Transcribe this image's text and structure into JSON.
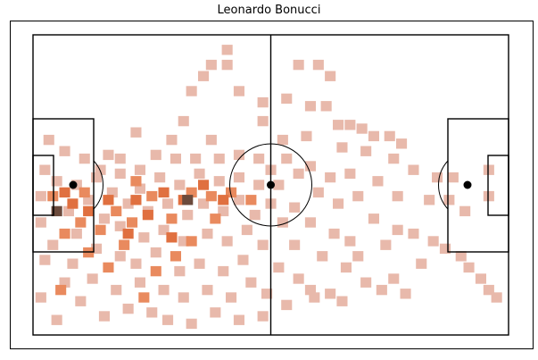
{
  "chart_data": {
    "type": "heatmap",
    "title": "Leonardo Bonucci",
    "subject": "pitch heatmap",
    "xlim": [
      0,
      120
    ],
    "ylim": [
      0,
      80
    ],
    "grid": false,
    "colors": {
      "low": "#e8b9ab",
      "mid": "#e98a5e",
      "high": "#e07040",
      "peak": "#6b4a3c",
      "pitch_lines": "#000000"
    },
    "bin_size": 2.72,
    "cells": [
      [
        49,
        76,
        1
      ],
      [
        45,
        72,
        1
      ],
      [
        49,
        72,
        1
      ],
      [
        67,
        72,
        1
      ],
      [
        72,
        72,
        1
      ],
      [
        43,
        69,
        1
      ],
      [
        75,
        69,
        1
      ],
      [
        40,
        65,
        1
      ],
      [
        52,
        65,
        1
      ],
      [
        58,
        62,
        1
      ],
      [
        64,
        63,
        1
      ],
      [
        70,
        61,
        1
      ],
      [
        74,
        61,
        1
      ],
      [
        38,
        57,
        1
      ],
      [
        58,
        57,
        1
      ],
      [
        77,
        56,
        1
      ],
      [
        80,
        56,
        1
      ],
      [
        83,
        55,
        1
      ],
      [
        86,
        53,
        1
      ],
      [
        90,
        53,
        1
      ],
      [
        93,
        51,
        1
      ],
      [
        26,
        54,
        1
      ],
      [
        35,
        52,
        1
      ],
      [
        45,
        52,
        1
      ],
      [
        63,
        52,
        1
      ],
      [
        69,
        53,
        1
      ],
      [
        78,
        50,
        1
      ],
      [
        84,
        49,
        1
      ],
      [
        91,
        47,
        1
      ],
      [
        96,
        44,
        1
      ],
      [
        102,
        42,
        1
      ],
      [
        106,
        42,
        1
      ],
      [
        115,
        44,
        1
      ],
      [
        115,
        37,
        1
      ],
      [
        87,
        41,
        1
      ],
      [
        92,
        37,
        1
      ],
      [
        100,
        36,
        1
      ],
      [
        105,
        36,
        1
      ],
      [
        109,
        33,
        1
      ],
      [
        86,
        31,
        1
      ],
      [
        92,
        28,
        1
      ],
      [
        96,
        27,
        1
      ],
      [
        101,
        25,
        1
      ],
      [
        104,
        23,
        1
      ],
      [
        108,
        21,
        1
      ],
      [
        110,
        18,
        1
      ],
      [
        113,
        15,
        1
      ],
      [
        115,
        12,
        1
      ],
      [
        117,
        10,
        1
      ],
      [
        84,
        14,
        1
      ],
      [
        88,
        12,
        1
      ],
      [
        91,
        15,
        1
      ],
      [
        94,
        11,
        1
      ],
      [
        98,
        19,
        1
      ],
      [
        89,
        24,
        1
      ],
      [
        82,
        21,
        1
      ],
      [
        75,
        11,
        1
      ],
      [
        78,
        9,
        1
      ],
      [
        71,
        10,
        1
      ],
      [
        64,
        8,
        1
      ],
      [
        58,
        5,
        1
      ],
      [
        52,
        4,
        1
      ],
      [
        46,
        6,
        1
      ],
      [
        40,
        3,
        1
      ],
      [
        34,
        4,
        1
      ],
      [
        30,
        6,
        1
      ],
      [
        24,
        7,
        1
      ],
      [
        18,
        5,
        1
      ],
      [
        12,
        9,
        1
      ],
      [
        8,
        14,
        1
      ],
      [
        3,
        20,
        1
      ],
      [
        2,
        10,
        1
      ],
      [
        6,
        4,
        1
      ],
      [
        4,
        52,
        1
      ],
      [
        8,
        49,
        1
      ],
      [
        13,
        47,
        1
      ],
      [
        17,
        44,
        1
      ],
      [
        22,
        47,
        1
      ],
      [
        27,
        44,
        1
      ],
      [
        31,
        48,
        1
      ],
      [
        36,
        47,
        1
      ],
      [
        41,
        47,
        1
      ],
      [
        47,
        47,
        1
      ],
      [
        52,
        48,
        1
      ],
      [
        57,
        47,
        1
      ],
      [
        60,
        44,
        1
      ],
      [
        64,
        47,
        1
      ],
      [
        70,
        45,
        1
      ],
      [
        75,
        42,
        1
      ],
      [
        80,
        43,
        1
      ],
      [
        72,
        38,
        1
      ],
      [
        77,
        35,
        1
      ],
      [
        82,
        37,
        1
      ],
      [
        70,
        30,
        1
      ],
      [
        76,
        27,
        1
      ],
      [
        80,
        25,
        1
      ],
      [
        73,
        21,
        1
      ],
      [
        79,
        18,
        1
      ],
      [
        66,
        24,
        1
      ],
      [
        62,
        18,
        1
      ],
      [
        67,
        15,
        1
      ],
      [
        70,
        12,
        1
      ],
      [
        55,
        14,
        1
      ],
      [
        59,
        11,
        1
      ],
      [
        50,
        10,
        1
      ],
      [
        44,
        12,
        1
      ],
      [
        38,
        10,
        1
      ],
      [
        33,
        12,
        1
      ],
      [
        27,
        14,
        1
      ],
      [
        21,
        12,
        1
      ],
      [
        15,
        15,
        1
      ],
      [
        10,
        19,
        1
      ],
      [
        5,
        24,
        1
      ],
      [
        2,
        30,
        1
      ],
      [
        2,
        37,
        1
      ],
      [
        3,
        44,
        1
      ],
      [
        6,
        41,
        1
      ],
      [
        9,
        33,
        1
      ],
      [
        11,
        27,
        1
      ],
      [
        16,
        23,
        1
      ],
      [
        22,
        21,
        1
      ],
      [
        26,
        19,
        1
      ],
      [
        31,
        22,
        1
      ],
      [
        37,
        17,
        1
      ],
      [
        42,
        19,
        1
      ],
      [
        48,
        17,
        1
      ],
      [
        53,
        20,
        1
      ],
      [
        58,
        24,
        1
      ],
      [
        54,
        28,
        1
      ],
      [
        49,
        25,
        1
      ],
      [
        44,
        27,
        1
      ],
      [
        38,
        25,
        1
      ],
      [
        33,
        28,
        1
      ],
      [
        28,
        26,
        1
      ],
      [
        22,
        29,
        1
      ],
      [
        18,
        31,
        1
      ],
      [
        14,
        36,
        1
      ],
      [
        11,
        40,
        1
      ],
      [
        16,
        42,
        1
      ],
      [
        20,
        38,
        1
      ],
      [
        24,
        35,
        1
      ],
      [
        29,
        33,
        1
      ],
      [
        34,
        35,
        1
      ],
      [
        39,
        32,
        1
      ],
      [
        43,
        35,
        1
      ],
      [
        48,
        33,
        1
      ],
      [
        52,
        36,
        1
      ],
      [
        56,
        32,
        1
      ],
      [
        60,
        35,
        1
      ],
      [
        63,
        30,
        1
      ],
      [
        66,
        34,
        1
      ],
      [
        57,
        40,
        1
      ],
      [
        52,
        42,
        1
      ],
      [
        47,
        41,
        1
      ],
      [
        42,
        43,
        1
      ],
      [
        37,
        40,
        1
      ],
      [
        32,
        42,
        1
      ],
      [
        27,
        39,
        1
      ],
      [
        22,
        43,
        1
      ],
      [
        19,
        48,
        1
      ],
      [
        62,
        40,
        1
      ],
      [
        67,
        43,
        1
      ],
      [
        5,
        37,
        2
      ],
      [
        8,
        27,
        2
      ],
      [
        12,
        30,
        2
      ],
      [
        17,
        28,
        2
      ],
      [
        21,
        33,
        2
      ],
      [
        25,
        30,
        2
      ],
      [
        30,
        37,
        2
      ],
      [
        35,
        31,
        2
      ],
      [
        40,
        38,
        2
      ],
      [
        45,
        37,
        2
      ],
      [
        50,
        38,
        2
      ],
      [
        55,
        36,
        2
      ],
      [
        13,
        38,
        2
      ],
      [
        26,
        41,
        2
      ],
      [
        7,
        12,
        2
      ],
      [
        23,
        24,
        2
      ],
      [
        36,
        21,
        2
      ],
      [
        46,
        31,
        2
      ],
      [
        40,
        25,
        2
      ],
      [
        31,
        17,
        2
      ],
      [
        19,
        18,
        2
      ],
      [
        14,
        22,
        2
      ],
      [
        28,
        10,
        2
      ],
      [
        8,
        38,
        3
      ],
      [
        14,
        33,
        3
      ],
      [
        19,
        36,
        3
      ],
      [
        26,
        36,
        3
      ],
      [
        33,
        38,
        3
      ],
      [
        38,
        36,
        3
      ],
      [
        43,
        40,
        3
      ],
      [
        48,
        36,
        3
      ],
      [
        29,
        32,
        3
      ],
      [
        24,
        27,
        3
      ],
      [
        10,
        35,
        3
      ],
      [
        35,
        26,
        3
      ],
      [
        39,
        36,
        4
      ],
      [
        6,
        33,
        4
      ]
    ]
  }
}
